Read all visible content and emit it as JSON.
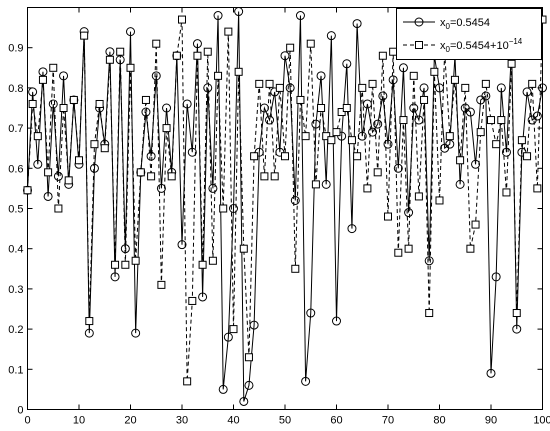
{
  "chart_data": {
    "type": "line",
    "title": "",
    "xlabel": "",
    "ylabel": "",
    "xlim": [
      0,
      100
    ],
    "ylim": [
      0,
      1
    ],
    "xticks": [
      0,
      10,
      20,
      30,
      40,
      50,
      60,
      70,
      80,
      90,
      100
    ],
    "yticks": [
      0,
      0.1,
      0.2,
      0.3,
      0.4,
      0.5,
      0.6,
      0.7,
      0.8,
      0.9
    ],
    "xtick_labels": [
      "0",
      "10",
      "20",
      "30",
      "40",
      "50",
      "60",
      "70",
      "80",
      "90",
      "100"
    ],
    "ytick_labels": [
      "0",
      "0.1",
      "0.2",
      "0.3",
      "0.4",
      "0.5",
      "0.6",
      "0.7",
      "0.8",
      "0.9"
    ],
    "grid": false,
    "legend_position": "top-right",
    "legend": {
      "entry1": {
        "main": "x",
        "sub": "0",
        "rest": "=0.5454"
      },
      "entry2": {
        "main": "x",
        "sub": "0",
        "rest": "=0.5454+10",
        "sup": "−14"
      }
    },
    "series": [
      {
        "marker": "circle",
        "line_style": "solid",
        "color": "#000000",
        "x": [
          0,
          1,
          2,
          3,
          4,
          5,
          6,
          7,
          8,
          9,
          10,
          11,
          12,
          13,
          14,
          15,
          16,
          17,
          18,
          19,
          20,
          21,
          22,
          23,
          24,
          25,
          26,
          27,
          28,
          29,
          30,
          31,
          32,
          33,
          34,
          35,
          36,
          37,
          38,
          39,
          40,
          41,
          42,
          43,
          44,
          45,
          46,
          47,
          48,
          49,
          50,
          51,
          52,
          53,
          54,
          55,
          56,
          57,
          58,
          59,
          60,
          61,
          62,
          63,
          64,
          65,
          66,
          67,
          68,
          69,
          70,
          71,
          72,
          73,
          74,
          75,
          76,
          77,
          78,
          79,
          80,
          81,
          82,
          83,
          84,
          85,
          86,
          87,
          88,
          89,
          90,
          91,
          92,
          93,
          94,
          95,
          96,
          97,
          98,
          99,
          100
        ],
        "values": [
          0.5454,
          0.79,
          0.61,
          0.84,
          0.53,
          0.76,
          0.58,
          0.83,
          0.56,
          0.77,
          0.61,
          0.94,
          0.19,
          0.6,
          0.75,
          0.66,
          0.89,
          0.33,
          0.87,
          0.4,
          0.94,
          0.19,
          0.59,
          0.74,
          0.63,
          0.83,
          0.55,
          0.75,
          0.59,
          0.88,
          0.41,
          0.76,
          0.64,
          0.91,
          0.28,
          0.8,
          0.55,
          0.98,
          0.05,
          0.18,
          0.5,
          0.99,
          0.02,
          0.06,
          0.21,
          0.64,
          0.75,
          0.72,
          0.79,
          0.64,
          0.88,
          0.8,
          0.52,
          0.98,
          0.07,
          0.24,
          0.71,
          0.83,
          0.56,
          0.93,
          0.22,
          0.68,
          0.86,
          0.45,
          0.96,
          0.68,
          0.76,
          0.69,
          0.71,
          0.78,
          0.66,
          0.82,
          0.6,
          0.85,
          0.49,
          0.75,
          0.72,
          0.8,
          0.37,
          0.88,
          0.8,
          0.65,
          0.66,
          0.88,
          0.56,
          0.75,
          0.74,
          0.61,
          0.77,
          0.78,
          0.09,
          0.33,
          0.8,
          0.64,
          0.9,
          0.2,
          0.64,
          0.79,
          0.72,
          0.73,
          0.8
        ]
      },
      {
        "marker": "square",
        "line_style": "dashed",
        "color": "#000000",
        "x": [
          0,
          1,
          2,
          3,
          4,
          5,
          6,
          7,
          8,
          9,
          10,
          11,
          12,
          13,
          14,
          15,
          16,
          17,
          18,
          19,
          20,
          21,
          22,
          23,
          24,
          25,
          26,
          27,
          28,
          29,
          30,
          31,
          32,
          33,
          34,
          35,
          36,
          37,
          38,
          39,
          40,
          41,
          42,
          43,
          44,
          45,
          46,
          47,
          48,
          49,
          50,
          51,
          52,
          53,
          54,
          55,
          56,
          57,
          58,
          59,
          60,
          61,
          62,
          63,
          64,
          65,
          66,
          67,
          68,
          69,
          70,
          71,
          72,
          73,
          74,
          75,
          76,
          77,
          78,
          79,
          80,
          81,
          82,
          83,
          84,
          85,
          86,
          87,
          88,
          89,
          90,
          91,
          92,
          93,
          94,
          95,
          96,
          97,
          98,
          99,
          100
        ],
        "values": [
          0.5454,
          0.76,
          0.68,
          0.82,
          0.59,
          0.85,
          0.5,
          0.75,
          0.57,
          0.77,
          0.62,
          0.93,
          0.22,
          0.66,
          0.76,
          0.65,
          0.87,
          0.36,
          0.89,
          0.36,
          0.85,
          0.37,
          0.59,
          0.77,
          0.58,
          0.91,
          0.31,
          0.7,
          0.58,
          0.88,
          0.97,
          0.07,
          0.27,
          0.88,
          0.36,
          0.89,
          0.37,
          0.83,
          0.5,
          0.94,
          0.2,
          0.84,
          0.4,
          0.13,
          0.63,
          0.81,
          0.58,
          0.81,
          0.58,
          0.8,
          0.63,
          0.9,
          0.35,
          0.77,
          0.68,
          0.91,
          0.56,
          0.75,
          0.68,
          0.67,
          0.69,
          0.74,
          0.75,
          0.67,
          0.63,
          0.8,
          0.55,
          0.81,
          0.59,
          0.88,
          0.48,
          0.89,
          0.39,
          0.72,
          0.4,
          0.83,
          0.53,
          0.77,
          0.24,
          0.84,
          0.52,
          0.89,
          0.68,
          0.82,
          0.62,
          0.8,
          0.4,
          0.46,
          0.69,
          0.81,
          0.72,
          0.66,
          0.72,
          0.54,
          0.86,
          0.24,
          0.67,
          0.63,
          0.81,
          0.55,
          0.97
        ]
      }
    ]
  }
}
